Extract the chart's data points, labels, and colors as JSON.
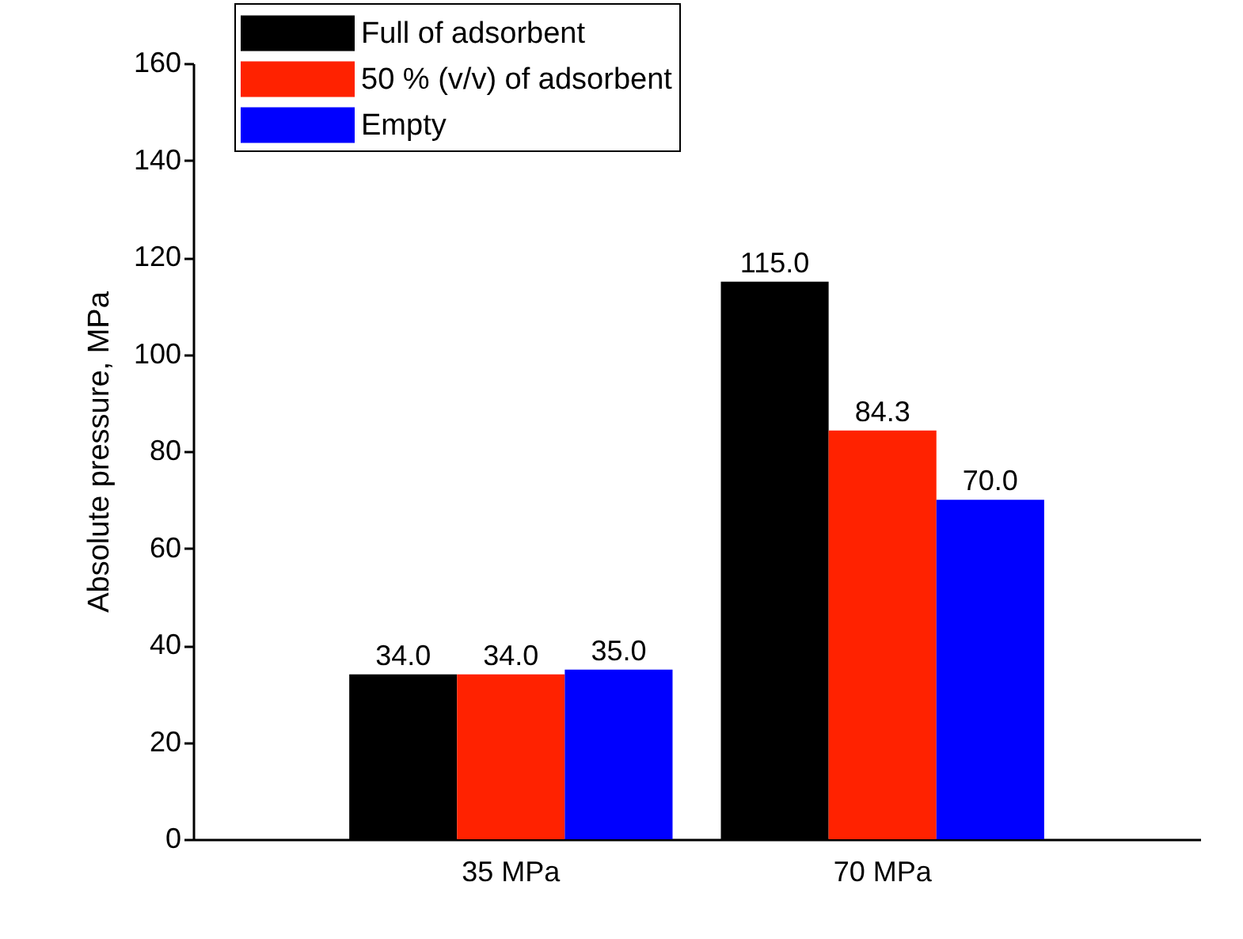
{
  "chart_data": {
    "type": "bar",
    "ylabel": "Absolute pressure, MPa",
    "categories": [
      "35 MPa",
      "70 MPa"
    ],
    "series": [
      {
        "name": "Full of adsorbent",
        "color": "#000000",
        "values": [
          34.0,
          115.0
        ],
        "value_labels": [
          "34.0",
          "115.0"
        ]
      },
      {
        "name": "50 % (v/v) of adsorbent",
        "color": "#ff2200",
        "values": [
          34.0,
          84.3
        ],
        "value_labels": [
          "34.0",
          "84.3"
        ]
      },
      {
        "name": "Empty",
        "color": "#0000ff",
        "values": [
          35.0,
          70.0
        ],
        "value_labels": [
          "35.0",
          "70.0"
        ]
      }
    ],
    "ylim": [
      0,
      160
    ],
    "yticks": [
      0,
      20,
      40,
      60,
      80,
      100,
      120,
      140,
      160
    ],
    "grid": false,
    "legend": "top left"
  }
}
